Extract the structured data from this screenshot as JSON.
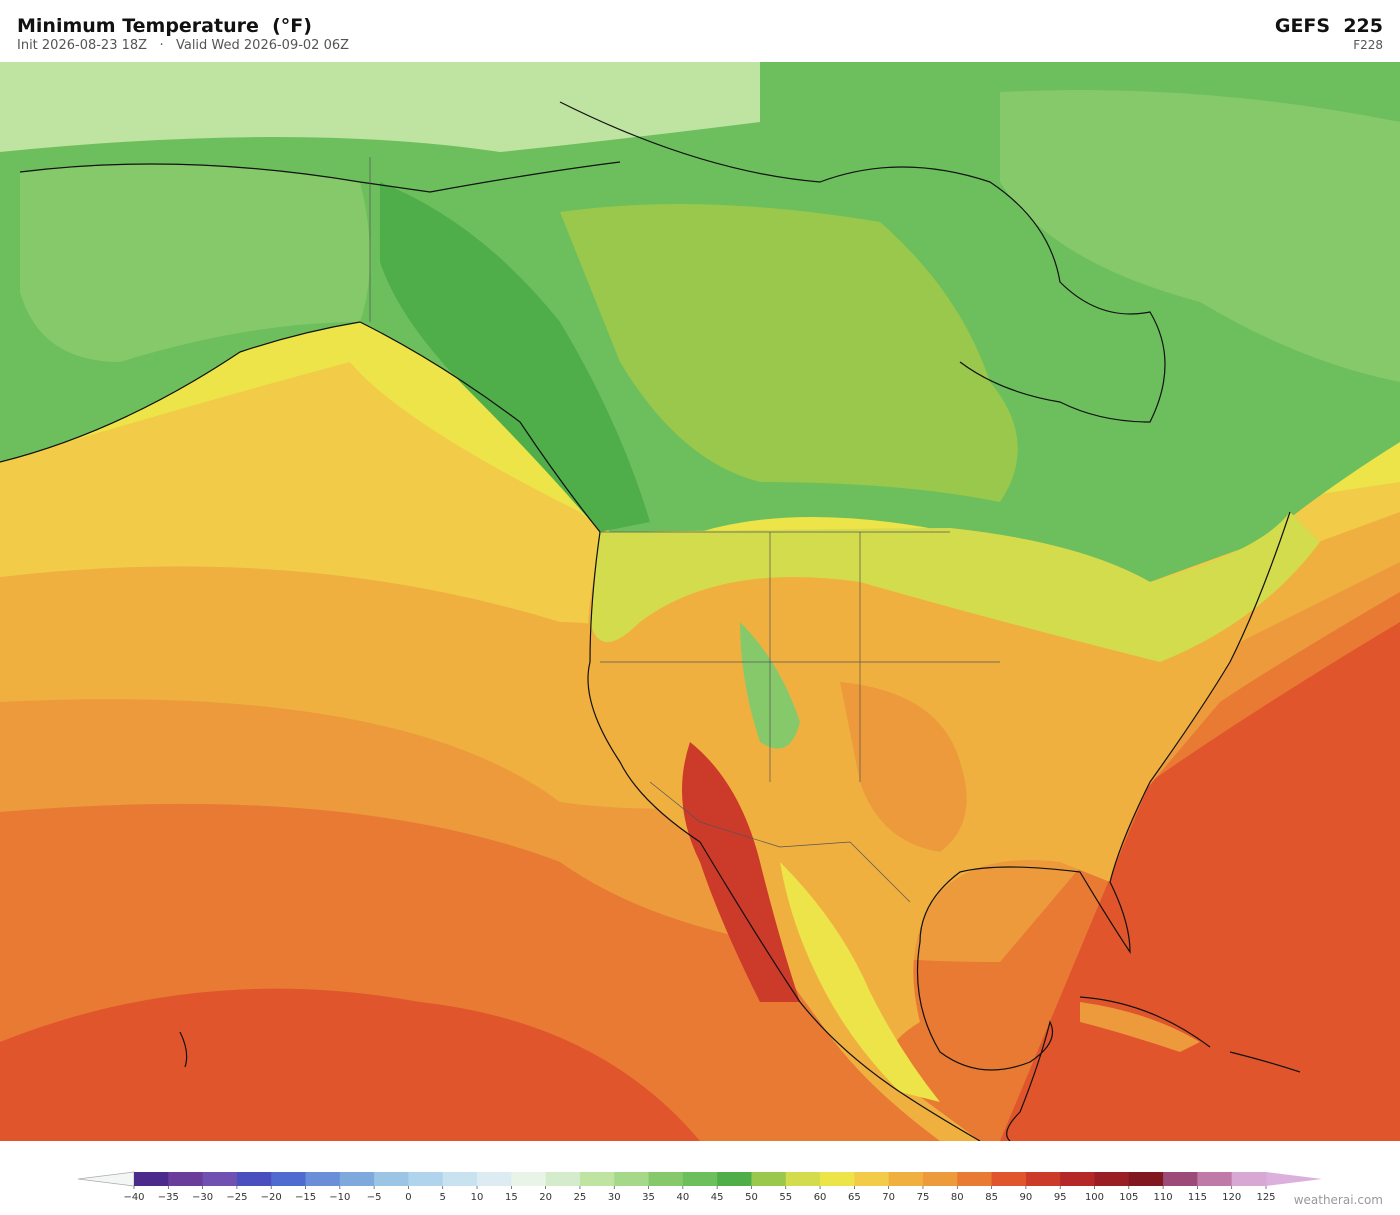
{
  "header": {
    "title": "Minimum Temperature  (°F)",
    "subtitle": "Init 2026-08-23 18Z   ·   Valid Wed 2026-09-02 06Z",
    "model": "GEFS  225",
    "forecast_hour": "F228"
  },
  "colorbar": {
    "ticks": [
      {
        "value": -40,
        "label": "−40"
      },
      {
        "value": -35,
        "label": "−35"
      },
      {
        "value": -30,
        "label": "−30"
      },
      {
        "value": -25,
        "label": "−25"
      },
      {
        "value": -20,
        "label": "−20"
      },
      {
        "value": -15,
        "label": "−15"
      },
      {
        "value": -10,
        "label": "−10"
      },
      {
        "value": -5,
        "label": "−5"
      },
      0,
      5,
      10,
      15,
      20,
      25,
      30,
      35,
      40,
      45,
      50,
      55,
      60,
      65,
      70,
      75,
      80,
      85,
      90,
      95,
      100,
      105,
      110,
      115,
      120,
      125
    ],
    "colors": [
      "#4b2a8c",
      "#6a3d9a",
      "#7050b0",
      "#4a4fc0",
      "#4f6bd0",
      "#6a8fd8",
      "#7fa8dc",
      "#9cc4e4",
      "#b0d4ec",
      "#c8e2f0",
      "#dcecf2",
      "#e8f4e8",
      "#d4eccc",
      "#bfe3a0",
      "#a6d88a",
      "#86c96a",
      "#6cbf5c",
      "#4fae4a",
      "#99c84c",
      "#d3dc4c",
      "#ece448",
      "#f2cc48",
      "#f0b040",
      "#ec9a3c",
      "#e87a34",
      "#e0552c",
      "#cc3a2a",
      "#b42828",
      "#9a1f24",
      "#82181f",
      "#9b4a7a",
      "#c07aa8",
      "#d8a8d4"
    ],
    "under_color": "#f4f6f6",
    "over_color": "#dcb0dc"
  },
  "footer": {
    "credit": "weatherai.com"
  }
}
